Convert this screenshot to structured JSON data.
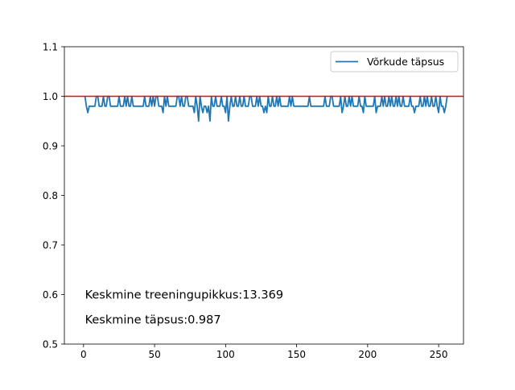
{
  "chart_data": {
    "type": "line",
    "title": "",
    "xlabel": "",
    "ylabel": "",
    "xlim": [
      -13.5,
      267.5
    ],
    "ylim": [
      0.5,
      1.1
    ],
    "xticks": [
      0,
      50,
      100,
      150,
      200,
      250
    ],
    "yticks": [
      0.5,
      0.6,
      0.7,
      0.8,
      0.9,
      1.0,
      1.1
    ],
    "xtick_labels": [
      "0",
      "50",
      "100",
      "150",
      "200",
      "250"
    ],
    "ytick_labels": [
      "0.5",
      "0.6",
      "0.7",
      "0.8",
      "0.9",
      "1.0",
      "1.1"
    ],
    "grid": false,
    "legend_position": "top-right",
    "series": [
      {
        "name": "Võrkude täpsus",
        "color": "#1f77b4",
        "x_start": 1,
        "x_step": 1,
        "values": [
          1.0,
          0.98,
          0.967,
          0.98,
          0.98,
          0.98,
          0.98,
          0.98,
          1.0,
          1.0,
          0.98,
          0.98,
          0.98,
          1.0,
          0.98,
          0.98,
          1.0,
          1.0,
          0.98,
          0.98,
          0.98,
          0.98,
          0.98,
          0.98,
          1.0,
          0.98,
          0.98,
          0.98,
          1.0,
          0.98,
          1.0,
          0.98,
          0.98,
          1.0,
          0.98,
          0.98,
          0.98,
          0.98,
          0.98,
          0.98,
          0.98,
          0.98,
          1.0,
          0.98,
          0.98,
          0.98,
          1.0,
          0.98,
          1.0,
          0.98,
          1.0,
          1.0,
          0.98,
          0.98,
          0.98,
          0.967,
          1.0,
          0.98,
          1.0,
          0.98,
          0.98,
          0.98,
          0.98,
          0.98,
          0.98,
          1.0,
          1.0,
          0.98,
          1.0,
          0.98,
          0.98,
          1.0,
          1.0,
          0.98,
          0.98,
          0.98,
          0.98,
          0.967,
          1.0,
          0.98,
          0.95,
          1.0,
          0.98,
          0.967,
          0.98,
          0.98,
          0.967,
          0.98,
          0.95,
          1.0,
          0.98,
          0.98,
          1.0,
          0.98,
          0.98,
          0.98,
          1.0,
          0.98,
          0.98,
          0.967,
          1.0,
          0.95,
          0.98,
          1.0,
          0.98,
          0.98,
          1.0,
          0.98,
          0.98,
          1.0,
          0.98,
          0.98,
          1.0,
          0.98,
          0.98,
          0.98,
          1.0,
          1.0,
          0.98,
          0.98,
          0.98,
          1.0,
          0.98,
          1.0,
          0.98,
          0.98,
          0.967,
          0.98,
          0.967,
          1.0,
          0.98,
          0.98,
          1.0,
          0.98,
          0.98,
          1.0,
          0.98,
          1.0,
          0.98,
          0.98,
          0.98,
          0.98,
          0.98,
          0.98,
          1.0,
          0.98,
          1.0,
          0.98,
          0.98,
          0.98,
          0.98,
          0.98,
          0.98,
          0.98,
          0.98,
          0.98,
          0.98,
          0.98,
          1.0,
          0.98,
          0.98,
          0.98,
          0.98,
          0.98,
          0.98,
          0.98,
          0.98,
          0.98,
          0.98,
          1.0,
          0.98,
          0.98,
          0.98,
          1.0,
          1.0,
          0.98,
          0.98,
          0.98,
          0.98,
          0.98,
          1.0,
          0.967,
          0.98,
          1.0,
          0.98,
          0.98,
          1.0,
          0.98,
          1.0,
          0.98,
          0.98,
          0.98,
          0.98,
          1.0,
          0.98,
          0.98,
          0.967,
          1.0,
          0.98,
          0.98,
          0.98,
          0.98,
          0.98,
          0.98,
          1.0,
          0.967,
          0.98,
          0.98,
          0.98,
          1.0,
          0.98,
          1.0,
          0.98,
          0.98,
          1.0,
          0.98,
          1.0,
          0.98,
          0.98,
          1.0,
          0.98,
          1.0,
          0.98,
          0.98,
          1.0,
          0.98,
          0.98,
          0.98,
          0.98,
          1.0,
          0.98,
          0.98,
          0.967,
          0.98,
          0.98,
          0.98,
          1.0,
          0.98,
          0.98,
          1.0,
          0.98,
          1.0,
          0.98,
          0.98,
          1.0,
          0.98,
          0.98,
          1.0,
          0.98,
          0.967,
          1.0,
          0.98,
          0.98,
          0.967,
          0.98,
          1.0
        ]
      }
    ],
    "reference_line": {
      "y": 1.0,
      "color": "#ff0000"
    },
    "annotations": [
      {
        "text": "Keskmine treeningupikkus:13.369",
        "x": 1,
        "y": 0.6
      },
      {
        "text": "Keskmine täpsus:0.987",
        "x": 1,
        "y": 0.55
      }
    ]
  }
}
